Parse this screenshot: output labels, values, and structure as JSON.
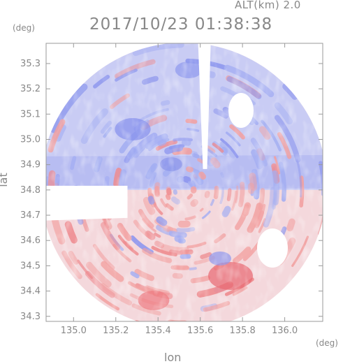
{
  "header": {
    "altitude": "ALT(km) 2.0",
    "timestamp": "2017/10/23 01:38:38"
  },
  "chart_data": {
    "type": "heatmap",
    "title": "2017/10/23 01:38:38",
    "subtitle": "ALT(km) 2.0",
    "xlabel": "lon",
    "ylabel": "lat",
    "x_unit": "(deg)",
    "y_unit": "(deg)",
    "xlim": [
      134.87,
      136.18
    ],
    "ylim": [
      34.28,
      35.38
    ],
    "x_ticks": [
      "135.0",
      "135.2",
      "135.4",
      "135.6",
      "135.8",
      "136.0"
    ],
    "y_ticks": [
      "34.3",
      "34.4",
      "34.5",
      "34.6",
      "34.7",
      "34.8",
      "34.9",
      "35.0",
      "35.1",
      "35.2",
      "35.3"
    ],
    "radar_center": [
      135.52,
      34.8
    ],
    "colors": {
      "positive": "#f2a0a0",
      "negative": "#a4aef2",
      "frame": "#9a9a9a"
    }
  }
}
